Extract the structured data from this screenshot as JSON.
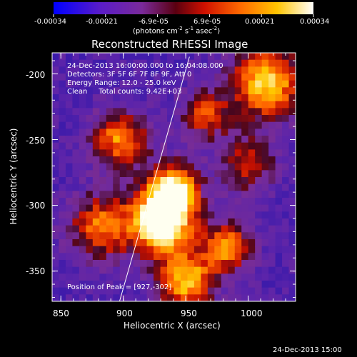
{
  "colorbar": {
    "ticks": [
      "-0.00034",
      "-0.00021",
      "-6.9e-05",
      "6.9e-05",
      "0.00021",
      "0.00034"
    ],
    "unit_label": "(photons cm",
    "unit_sup1": "-2",
    "unit_mid": " s",
    "unit_sup2": "-1",
    "unit_mid2": " asec",
    "unit_sup3": "-2",
    "unit_end": ")"
  },
  "chart_data": {
    "type": "heatmap",
    "title": "Reconstructed RHESSI Image",
    "xlabel": "Heliocentric X (arcsec)",
    "ylabel": "Heliocentric Y (arcsec)",
    "xlim": [
      843,
      1038
    ],
    "ylim": [
      -373,
      -184
    ],
    "x_ticks": [
      850,
      900,
      950,
      1000
    ],
    "y_ticks": [
      -200,
      -250,
      -300,
      -350
    ],
    "x_tick_labels": [
      "850",
      "900",
      "950",
      "1000"
    ],
    "y_tick_labels": [
      "-200",
      "-250",
      "-300",
      "-350"
    ],
    "colormap": "rainbow-hot (blue-purple-red-orange-yellow-white)",
    "color_range": [
      -0.00034,
      0.00034
    ],
    "peak": [
      927,
      -302
    ],
    "limb_line": [
      [
        897,
        -373
      ],
      [
        953,
        -187
      ]
    ],
    "annotations": [
      "24-Dec-2013 16:00:00.000 to 16:04:08.000",
      "Detectors: 3F 5F 6F 7F 8F 9F, Att 0",
      "Energy Range: 12.0 - 25.0 keV",
      "Clean     Total counts: 9.42E+03",
      "Position of Peak = [927,-302]"
    ]
  },
  "footer": {
    "timestamp": "24-Dec-2013 15:00"
  }
}
